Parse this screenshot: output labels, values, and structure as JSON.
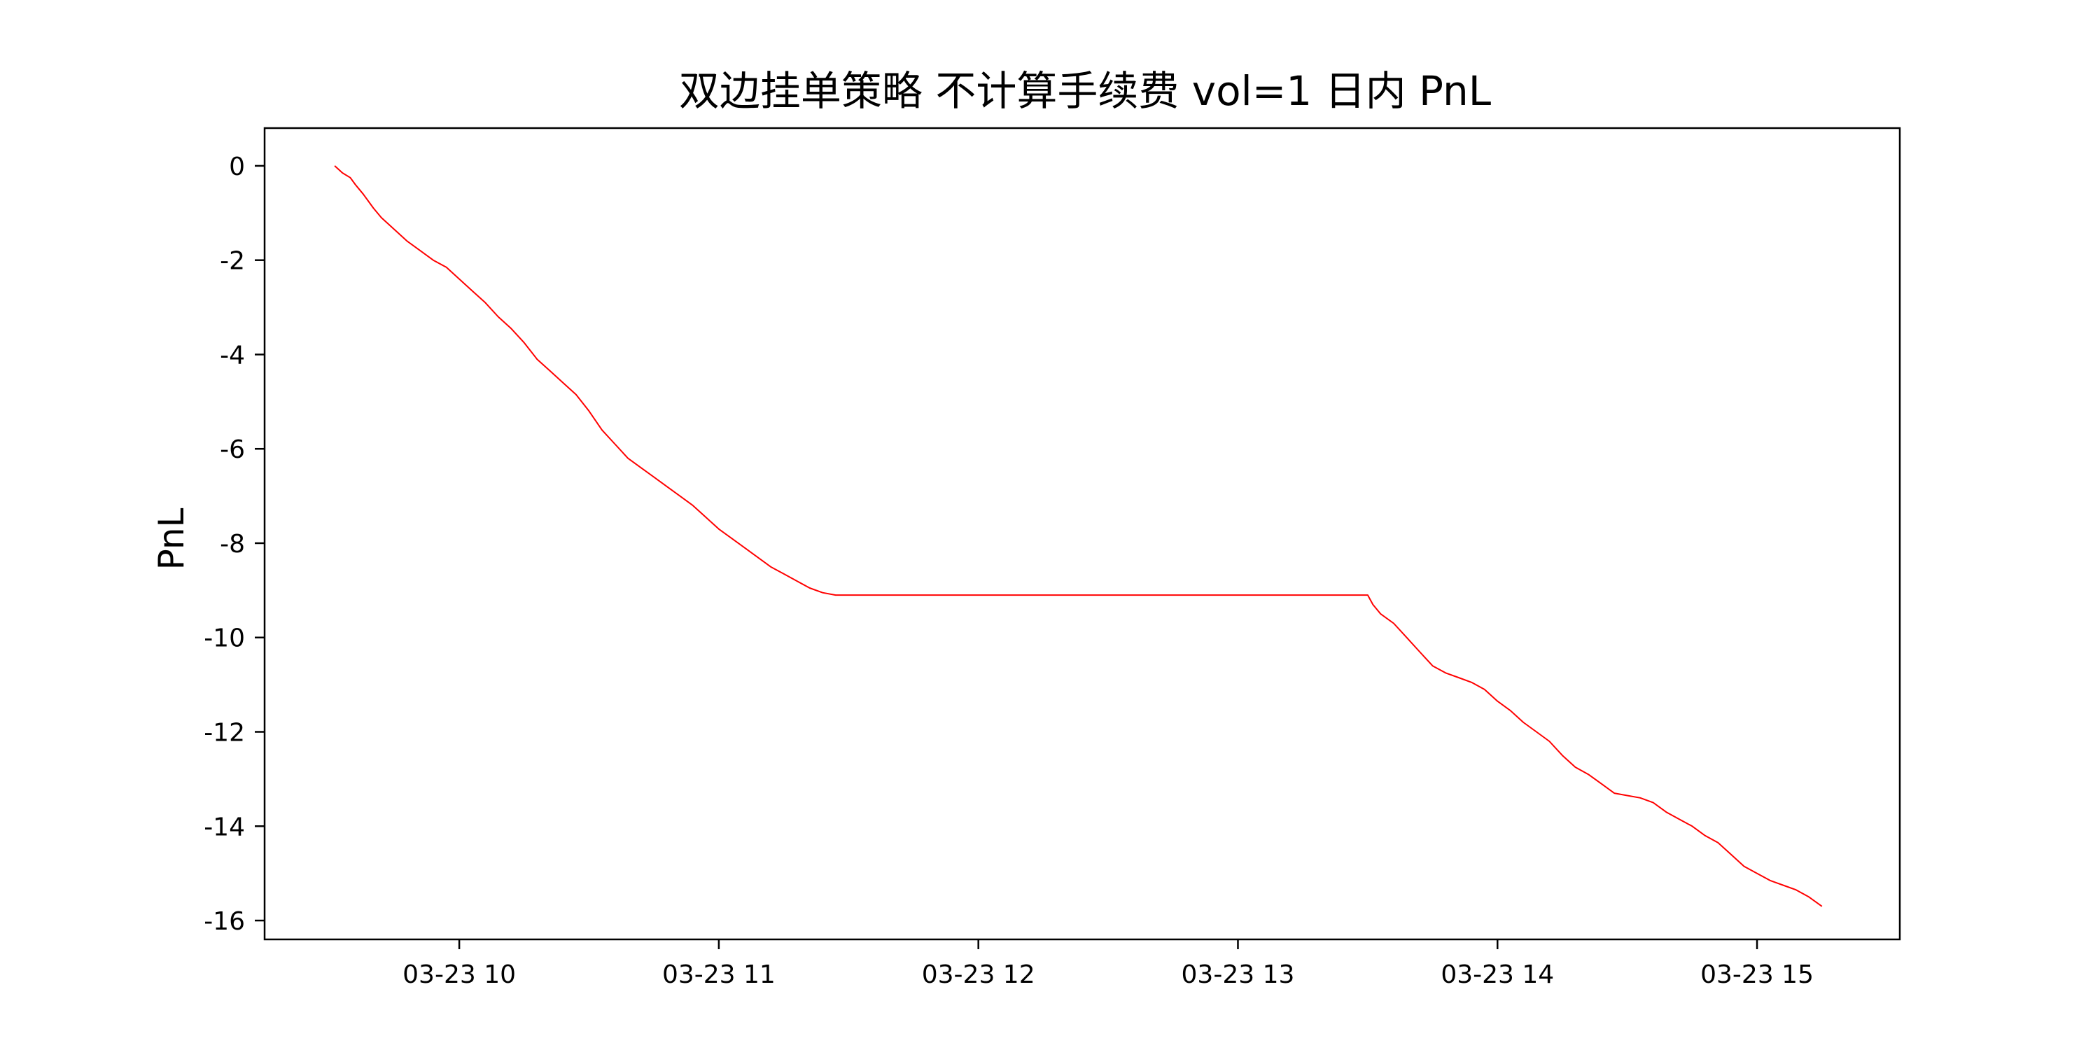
{
  "chart_data": {
    "type": "line",
    "title": "双边挂单策略 不计算手续费 vol=1 日内 PnL",
    "xlabel": "",
    "ylabel": "PnL",
    "x_unit": "hour of day",
    "xlim": [
      9.25,
      15.55
    ],
    "ylim": [
      -16.4,
      0.8
    ],
    "x_ticks": [
      {
        "value": 10,
        "label": "03-23 10"
      },
      {
        "value": 11,
        "label": "03-23 11"
      },
      {
        "value": 12,
        "label": "03-23 12"
      },
      {
        "value": 13,
        "label": "03-23 13"
      },
      {
        "value": 14,
        "label": "03-23 14"
      },
      {
        "value": 15,
        "label": "03-23 15"
      }
    ],
    "y_ticks": [
      {
        "value": 0,
        "label": "0"
      },
      {
        "value": -2,
        "label": "-2"
      },
      {
        "value": -4,
        "label": "-4"
      },
      {
        "value": -6,
        "label": "-6"
      },
      {
        "value": -8,
        "label": "-8"
      },
      {
        "value": -10,
        "label": "-10"
      },
      {
        "value": -12,
        "label": "-12"
      },
      {
        "value": -14,
        "label": "-14"
      },
      {
        "value": -16,
        "label": "-16"
      }
    ],
    "grid": false,
    "series": [
      {
        "color": "#ff0000",
        "x": [
          9.52,
          9.55,
          9.58,
          9.6,
          9.63,
          9.67,
          9.7,
          9.75,
          9.8,
          9.85,
          9.9,
          9.95,
          10.0,
          10.05,
          10.1,
          10.15,
          10.2,
          10.25,
          10.3,
          10.35,
          10.4,
          10.45,
          10.5,
          10.55,
          10.6,
          10.65,
          10.7,
          10.75,
          10.8,
          10.85,
          10.9,
          10.95,
          11.0,
          11.05,
          11.1,
          11.15,
          11.2,
          11.25,
          11.3,
          11.35,
          11.4,
          11.45,
          11.5,
          11.75,
          12.0,
          12.25,
          12.5,
          12.75,
          13.0,
          13.25,
          13.5,
          13.52,
          13.55,
          13.6,
          13.65,
          13.7,
          13.75,
          13.8,
          13.85,
          13.9,
          13.95,
          14.0,
          14.05,
          14.1,
          14.15,
          14.2,
          14.25,
          14.3,
          14.35,
          14.4,
          14.45,
          14.5,
          14.55,
          14.6,
          14.65,
          14.7,
          14.75,
          14.8,
          14.85,
          14.9,
          14.95,
          15.0,
          15.05,
          15.1,
          15.15,
          15.2,
          15.25
        ],
        "y": [
          0.0,
          -0.15,
          -0.25,
          -0.4,
          -0.6,
          -0.9,
          -1.1,
          -1.35,
          -1.6,
          -1.8,
          -2.0,
          -2.15,
          -2.4,
          -2.65,
          -2.9,
          -3.2,
          -3.45,
          -3.75,
          -4.1,
          -4.35,
          -4.6,
          -4.85,
          -5.2,
          -5.6,
          -5.9,
          -6.2,
          -6.4,
          -6.6,
          -6.8,
          -7.0,
          -7.2,
          -7.45,
          -7.7,
          -7.9,
          -8.1,
          -8.3,
          -8.5,
          -8.65,
          -8.8,
          -8.95,
          -9.05,
          -9.1,
          -9.1,
          -9.1,
          -9.1,
          -9.1,
          -9.1,
          -9.1,
          -9.1,
          -9.1,
          -9.1,
          -9.3,
          -9.5,
          -9.7,
          -10.0,
          -10.3,
          -10.6,
          -10.75,
          -10.85,
          -10.95,
          -11.1,
          -11.35,
          -11.55,
          -11.8,
          -12.0,
          -12.2,
          -12.5,
          -12.75,
          -12.9,
          -13.1,
          -13.3,
          -13.35,
          -13.4,
          -13.5,
          -13.7,
          -13.85,
          -14.0,
          -14.2,
          -14.35,
          -14.6,
          -14.85,
          -15.0,
          -15.15,
          -15.25,
          -15.35,
          -15.5,
          -15.7
        ]
      }
    ]
  }
}
